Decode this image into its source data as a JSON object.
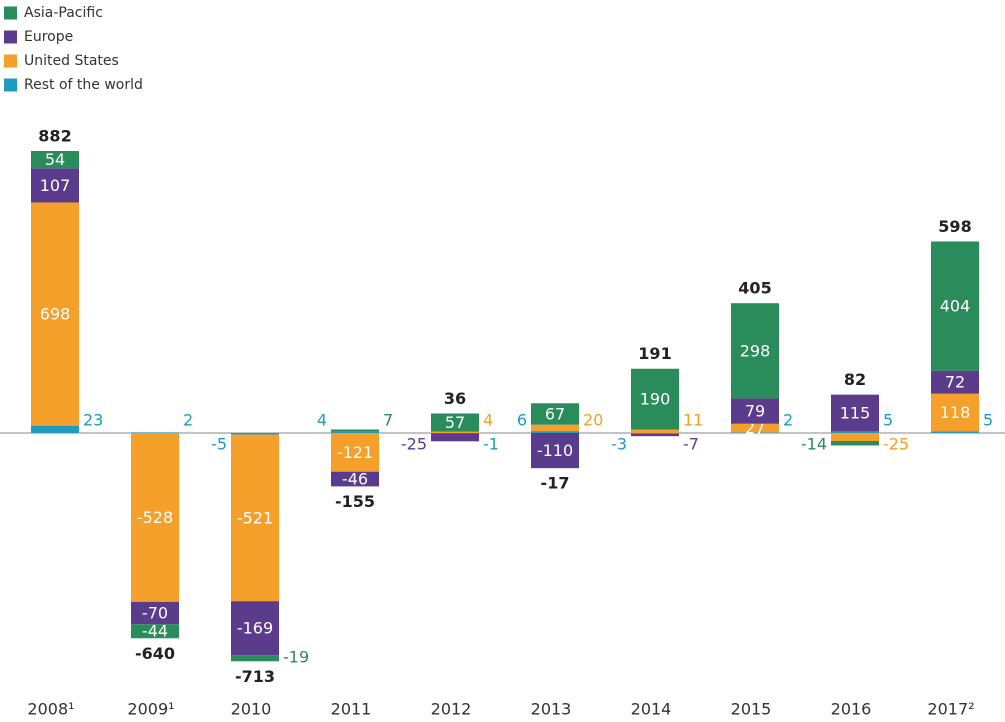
{
  "chart_data": {
    "type": "stacked-bar",
    "categories": [
      "2008¹",
      "2009¹",
      "2010",
      "2011",
      "2012",
      "2013",
      "2014",
      "2015",
      "2016",
      "2017²"
    ],
    "series": [
      {
        "name": "Asia-Pacific",
        "color": "#2a8c5a",
        "values": [
          54,
          -44,
          -19,
          7,
          57,
          67,
          190,
          298,
          -14,
          404
        ]
      },
      {
        "name": "Europe",
        "color": "#5b3c8c",
        "values": [
          107,
          -70,
          -169,
          -46,
          -25,
          -110,
          -7,
          79,
          115,
          72
        ]
      },
      {
        "name": "United States",
        "color": "#f5a02a",
        "values": [
          698,
          -528,
          -521,
          -121,
          4,
          20,
          11,
          27,
          -25,
          118
        ]
      },
      {
        "name": "Rest of the world",
        "color": "#1f9bbf",
        "values": [
          23,
          2,
          -5,
          4,
          -1,
          6,
          -3,
          2,
          5,
          5
        ]
      }
    ],
    "totals": [
      882,
      -640,
      -713,
      -155,
      36,
      -17,
      191,
      405,
      82,
      598
    ]
  }
}
